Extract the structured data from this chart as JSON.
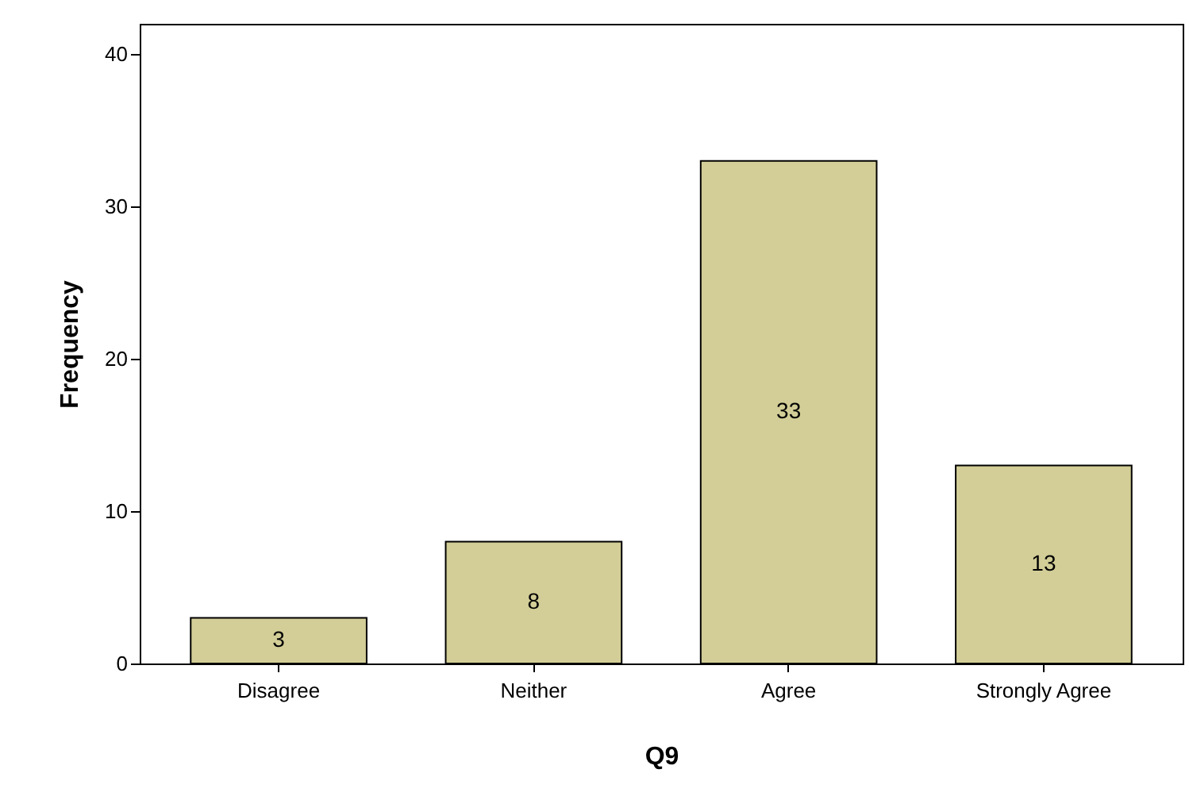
{
  "chart_data": {
    "type": "bar",
    "xlabel": "Q9",
    "ylabel": "Frequency",
    "categories": [
      "Disagree",
      "Neither",
      "Agree",
      "Strongly Agree"
    ],
    "values": [
      3,
      8,
      33,
      13
    ],
    "color": "#d3ce97",
    "ylim": [
      0,
      42
    ],
    "yticks": [
      0,
      10,
      20,
      30,
      40
    ],
    "grid": false,
    "data_labels": true
  }
}
